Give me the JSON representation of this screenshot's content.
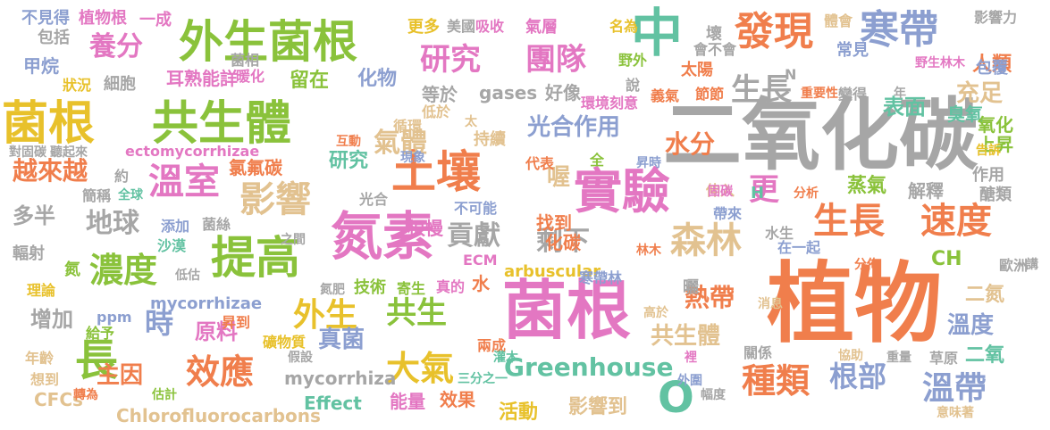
{
  "palette": {
    "pink": "#e377c2",
    "green": "#8ac23b",
    "orange": "#f07e4c",
    "gray": "#a6a6a6",
    "teal": "#62c2a2",
    "blue": "#8c9fd0",
    "yellow": "#e8c12b",
    "tan": "#e2c290"
  },
  "words": [
    {
      "text": "植物",
      "color": "#f07e4c"
    },
    {
      "text": "二氧化碳",
      "color": "#a6a6a6"
    },
    {
      "text": "菌根",
      "color": "#e377c2"
    },
    {
      "text": "氮素",
      "color": "#e377c2"
    },
    {
      "text": "中",
      "color": "#62c2a2"
    },
    {
      "text": "菌根",
      "color": "#e8c12b"
    },
    {
      "text": "共生體",
      "color": "#8ac23b"
    },
    {
      "text": "外生菌根",
      "color": "#8ac23b"
    },
    {
      "text": "實驗",
      "color": "#e377c2"
    },
    {
      "text": "土壤",
      "color": "#f07e4c"
    },
    {
      "text": "提高",
      "color": "#8ac23b"
    },
    {
      "text": "發現",
      "color": "#f07e4c"
    },
    {
      "text": "寒帶",
      "color": "#8c9fd0"
    },
    {
      "text": "生長",
      "color": "#f07e4c"
    },
    {
      "text": "速度",
      "color": "#f07e4c"
    },
    {
      "text": "森林",
      "color": "#e2c290"
    },
    {
      "text": "溫室",
      "color": "#e377c2"
    },
    {
      "text": "影響",
      "color": "#e2c290"
    },
    {
      "text": "濃度",
      "color": "#8ac23b"
    },
    {
      "text": "研究",
      "color": "#e377c2"
    },
    {
      "text": "團隊",
      "color": "#e377c2"
    },
    {
      "text": "養分",
      "color": "#e377c2"
    },
    {
      "text": "外生",
      "color": "#e8c12b"
    },
    {
      "text": "共生",
      "color": "#8ac23b"
    },
    {
      "text": "溫帶",
      "color": "#8c9fd0"
    },
    {
      "text": "種類",
      "color": "#f07e4c"
    },
    {
      "text": "效應",
      "color": "#f07e4c"
    },
    {
      "text": "大氣",
      "color": "#e8c12b"
    },
    {
      "text": "長",
      "color": "#8ac23b"
    },
    {
      "text": "時",
      "color": "#8c9fd0"
    },
    {
      "text": "更",
      "color": "#e377c2"
    },
    {
      "text": "Greenhouse",
      "color": "#62c2a2"
    },
    {
      "text": "O",
      "color": "#62c2a2"
    },
    {
      "text": "根部",
      "color": "#8c9fd0"
    },
    {
      "text": "貢獻",
      "color": "#a6a6a6"
    },
    {
      "text": "剩下",
      "color": "#a6a6a6"
    },
    {
      "text": "氣體",
      "color": "#e2c290"
    },
    {
      "text": "光合作用",
      "color": "#8c9fd0"
    },
    {
      "text": "水分",
      "color": "#f07e4c"
    },
    {
      "text": "生長",
      "color": "#a6a6a6"
    },
    {
      "text": "充足",
      "color": "#e2c290"
    },
    {
      "text": "表面",
      "color": "#62c2a2"
    },
    {
      "text": "臭氧",
      "color": "#62c2a2"
    },
    {
      "text": "越來越",
      "color": "#f07e4c"
    },
    {
      "text": "地球",
      "color": "#a6a6a6"
    },
    {
      "text": "多半",
      "color": "#a6a6a6"
    },
    {
      "text": "主因",
      "color": "#f07e4c"
    },
    {
      "text": "增加",
      "color": "#a6a6a6"
    },
    {
      "text": "原料",
      "color": "#e377c2"
    },
    {
      "text": "熱帶",
      "color": "#f07e4c"
    },
    {
      "text": "共生體",
      "color": "#e2c290"
    },
    {
      "text": "真菌",
      "color": "#8c9fd0"
    },
    {
      "text": "溫度",
      "color": "#8c9fd0"
    },
    {
      "text": "二氮",
      "color": "#e2c290"
    },
    {
      "text": "二氧",
      "color": "#62c2a2"
    },
    {
      "text": "人類",
      "color": "#f07e4c"
    },
    {
      "text": "氧化",
      "color": "#8ac23b"
    },
    {
      "text": "上昇",
      "color": "#8ac23b"
    },
    {
      "text": "蒸氣",
      "color": "#8ac23b"
    },
    {
      "text": "解釋",
      "color": "#a6a6a6"
    },
    {
      "text": "作用",
      "color": "#a6a6a6"
    },
    {
      "text": "醣類",
      "color": "#a6a6a6"
    },
    {
      "text": "耳熟能詳",
      "color": "#e377c2"
    },
    {
      "text": "留在",
      "color": "#8ac23b"
    },
    {
      "text": "化物",
      "color": "#8c9fd0"
    },
    {
      "text": "等於",
      "color": "#a6a6a6"
    },
    {
      "text": "gases",
      "color": "#a6a6a6"
    },
    {
      "text": "好像",
      "color": "#a6a6a6"
    },
    {
      "text": "氯氟碳",
      "color": "#f07e4c"
    },
    {
      "text": "研究",
      "color": "#62c2a2"
    },
    {
      "text": "喔",
      "color": "#e2c290"
    },
    {
      "text": "根慢",
      "color": "#e377c2"
    },
    {
      "text": "找到",
      "color": "#f07e4c"
    },
    {
      "text": "化碳",
      "color": "#f07e4c"
    },
    {
      "text": "技術",
      "color": "#8ac23b"
    },
    {
      "text": "水",
      "color": "#f07e4c"
    },
    {
      "text": "arbuscular",
      "color": "#e8c12b"
    },
    {
      "text": "CH",
      "color": "#8ac23b"
    },
    {
      "text": "mycorrhizae",
      "color": "#8c9fd0"
    },
    {
      "text": "mycorrhiza",
      "color": "#a6a6a6"
    },
    {
      "text": "Effect",
      "color": "#62c2a2"
    },
    {
      "text": "能量",
      "color": "#e377c2"
    },
    {
      "text": "效果",
      "color": "#f07e4c"
    },
    {
      "text": "活動",
      "color": "#e8c12b"
    },
    {
      "text": "影響到",
      "color": "#e2c290"
    },
    {
      "text": "Chlorofluorocarbons",
      "color": "#e2c290"
    },
    {
      "text": "CFCs",
      "color": "#e2c290"
    },
    {
      "text": "ectomycorrhizae",
      "color": "#e377c2"
    },
    {
      "text": "ECM",
      "color": "#e377c2"
    },
    {
      "text": "ppm",
      "color": "#8c9fd0"
    },
    {
      "text": "不見得",
      "color": "#8c9fd0"
    },
    {
      "text": "植物根",
      "color": "#e377c2"
    },
    {
      "text": "一成",
      "color": "#e377c2"
    },
    {
      "text": "包括",
      "color": "#a6a6a6"
    },
    {
      "text": "甲烷",
      "color": "#8c9fd0"
    },
    {
      "text": "狀況",
      "color": "#e8c12b"
    },
    {
      "text": "細胞",
      "color": "#a6a6a6"
    },
    {
      "text": "更多",
      "color": "#e8c12b"
    },
    {
      "text": "美國",
      "color": "#a6a6a6"
    },
    {
      "text": "吸收",
      "color": "#e377c2"
    },
    {
      "text": "氣層",
      "color": "#e377c2"
    },
    {
      "text": "名為",
      "color": "#e8c12b"
    },
    {
      "text": "壞",
      "color": "#a6a6a6"
    },
    {
      "text": "體會",
      "color": "#e2c290"
    },
    {
      "text": "影響力",
      "color": "#a6a6a6"
    },
    {
      "text": "常見",
      "color": "#8c9fd0"
    },
    {
      "text": "包覆",
      "color": "#8c9fd0"
    },
    {
      "text": "太陽",
      "color": "#f07e4c"
    },
    {
      "text": "野外",
      "color": "#8ac23b"
    },
    {
      "text": "會不會",
      "color": "#a6a6a6"
    },
    {
      "text": "野生林木",
      "color": "#e377c2"
    },
    {
      "text": "菌相",
      "color": "#a6a6a6"
    },
    {
      "text": "暖化",
      "color": "#e377c2"
    },
    {
      "text": "低於",
      "color": "#e2c290"
    },
    {
      "text": "說",
      "color": "#a6a6a6"
    },
    {
      "text": "義氣",
      "color": "#f07e4c"
    },
    {
      "text": "節節",
      "color": "#f07e4c"
    },
    {
      "text": "重要性",
      "color": "#f07e4c"
    },
    {
      "text": "變得",
      "color": "#a6a6a6"
    },
    {
      "text": "年",
      "color": "#a6a6a6"
    },
    {
      "text": "環境",
      "color": "#e377c2"
    },
    {
      "text": "刻意",
      "color": "#e377c2"
    },
    {
      "text": "循環",
      "color": "#e2c290"
    },
    {
      "text": "太",
      "color": "#e2c290"
    },
    {
      "text": "持續",
      "color": "#e2c290"
    },
    {
      "text": "互動",
      "color": "#f07e4c"
    },
    {
      "text": "代表",
      "color": "#f07e4c"
    },
    {
      "text": "全",
      "color": "#8ac23b"
    },
    {
      "text": "昇時",
      "color": "#8c9fd0"
    },
    {
      "text": "對固碳",
      "color": "#a6a6a6"
    },
    {
      "text": "聽起來",
      "color": "#a6a6a6"
    },
    {
      "text": "現象",
      "color": "#8c9fd0"
    },
    {
      "text": "告訴",
      "color": "#e8c12b"
    },
    {
      "text": "約",
      "color": "#a6a6a6"
    },
    {
      "text": "簡稱",
      "color": "#a6a6a6"
    },
    {
      "text": "全球",
      "color": "#62c2a2"
    },
    {
      "text": "光合",
      "color": "#a6a6a6"
    },
    {
      "text": "不可能",
      "color": "#8c9fd0"
    },
    {
      "text": "伸入",
      "color": "#e2c290"
    },
    {
      "text": "固碳",
      "color": "#e377c2"
    },
    {
      "text": "H",
      "color": "#62c2a2"
    },
    {
      "text": "分析",
      "color": "#f07e4c"
    },
    {
      "text": "帶來",
      "color": "#8c9fd0"
    },
    {
      "text": "添加",
      "color": "#8c9fd0"
    },
    {
      "text": "菌絲",
      "color": "#a6a6a6"
    },
    {
      "text": "沙漠",
      "color": "#62c2a2"
    },
    {
      "text": "之間",
      "color": "#a6a6a6"
    },
    {
      "text": "輻射",
      "color": "#a6a6a6"
    },
    {
      "text": "林木",
      "color": "#f07e4c"
    },
    {
      "text": "水生",
      "color": "#a6a6a6"
    },
    {
      "text": "在一起",
      "color": "#8c9fd0"
    },
    {
      "text": "歐洲",
      "color": "#a6a6a6"
    },
    {
      "text": "講",
      "color": "#a6a6a6"
    },
    {
      "text": "氮",
      "color": "#8ac23b"
    },
    {
      "text": "低估",
      "color": "#a6a6a6"
    },
    {
      "text": "理論",
      "color": "#e8c12b"
    },
    {
      "text": "氮肥",
      "color": "#a6a6a6"
    },
    {
      "text": "寄生",
      "color": "#8ac23b"
    },
    {
      "text": "真的",
      "color": "#e377c2"
    },
    {
      "text": "寒帶林",
      "color": "#8c9fd0"
    },
    {
      "text": "分佈",
      "color": "#f07e4c"
    },
    {
      "text": "曬",
      "color": "#a6a6a6"
    },
    {
      "text": "消息",
      "color": "#e2c290"
    },
    {
      "text": "高於",
      "color": "#e2c290"
    },
    {
      "text": "給予",
      "color": "#8ac23b"
    },
    {
      "text": "昇到",
      "color": "#f07e4c"
    },
    {
      "text": "礦物質",
      "color": "#e8c12b"
    },
    {
      "text": "年齡",
      "color": "#e2c290"
    },
    {
      "text": "假設",
      "color": "#a6a6a6"
    },
    {
      "text": "兩成",
      "color": "#f07e4c"
    },
    {
      "text": "灌木",
      "color": "#62c2a2"
    },
    {
      "text": "裡",
      "color": "#e377c2"
    },
    {
      "text": "關係",
      "color": "#a6a6a6"
    },
    {
      "text": "協助",
      "color": "#e2c290"
    },
    {
      "text": "重量",
      "color": "#a6a6a6"
    },
    {
      "text": "草原",
      "color": "#a6a6a6"
    },
    {
      "text": "想到",
      "color": "#e2c290"
    },
    {
      "text": "轉為",
      "color": "#f07e4c"
    },
    {
      "text": "估計",
      "color": "#8ac23b"
    },
    {
      "text": "三分之一",
      "color": "#62c2a2"
    },
    {
      "text": "外圍",
      "color": "#8c9fd0"
    },
    {
      "text": "幅度",
      "color": "#a6a6a6"
    },
    {
      "text": "意味著",
      "color": "#e2c290"
    },
    {
      "text": "N",
      "color": "#a6a6a6"
    }
  ]
}
